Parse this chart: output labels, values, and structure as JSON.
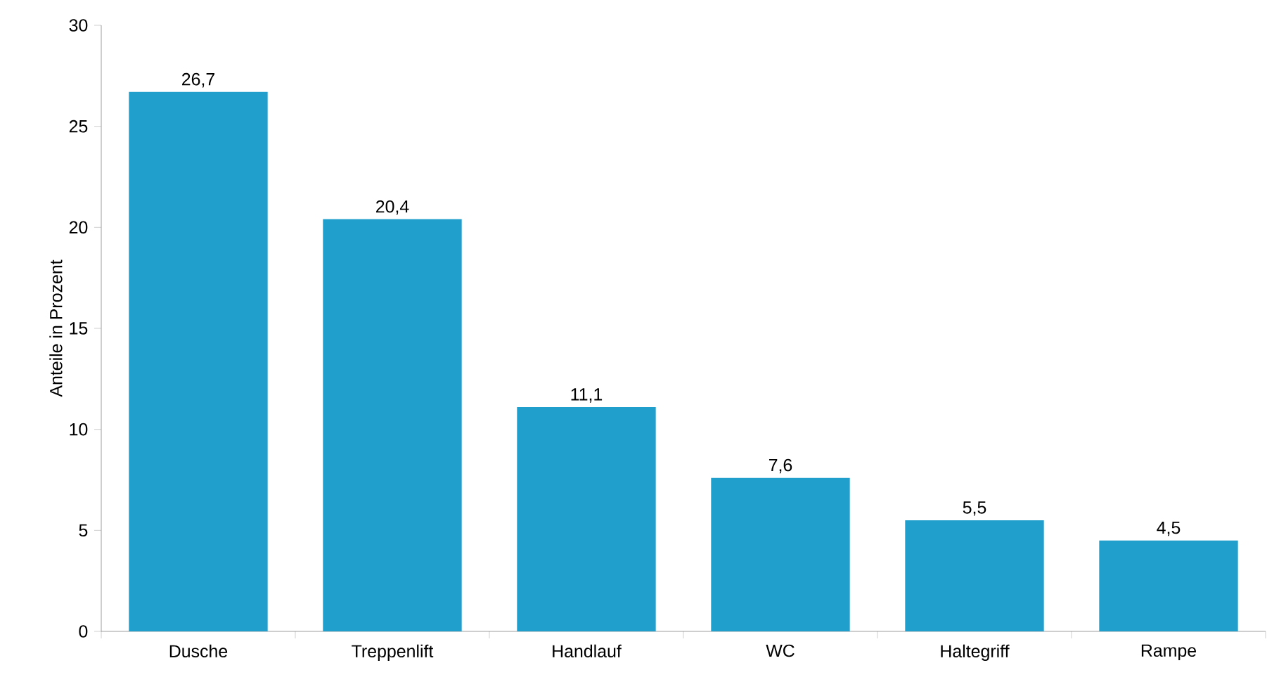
{
  "chart_data": {
    "type": "bar",
    "ylabel": "Anteile in Prozent",
    "categories": [
      "Dusche",
      "Treppenlift",
      "Handlauf",
      "WC",
      "Haltegriff",
      "Rampe"
    ],
    "values": [
      26.7,
      20.4,
      11.1,
      7.6,
      5.5,
      4.5
    ],
    "value_labels": [
      "26,7",
      "20,4",
      "11,1",
      "7,6",
      "5,5",
      "4,5"
    ],
    "color": "#219fcc",
    "ylim": [
      0,
      30
    ],
    "yticks": [
      0,
      5,
      10,
      15,
      20,
      25,
      30
    ],
    "grid": false
  }
}
